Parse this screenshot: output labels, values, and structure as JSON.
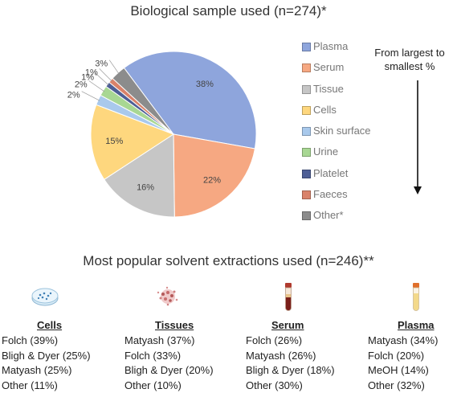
{
  "pie_title": "Biological sample used (n=274)*",
  "extraction_title": "Most popular solvent extractions used (n=246)**",
  "order_note": "From largest to smallest %",
  "chart_data": {
    "type": "pie",
    "title": "Biological sample used (n=274)*",
    "legend_position": "right",
    "slices": [
      {
        "label": "Plasma",
        "value": 38,
        "value_label": "38%",
        "color": "#8ea5dc"
      },
      {
        "label": "Serum",
        "value": 22,
        "value_label": "22%",
        "color": "#f6a882"
      },
      {
        "label": "Tissue",
        "value": 16,
        "value_label": "16%",
        "color": "#c6c6c6"
      },
      {
        "label": "Cells",
        "value": 15,
        "value_label": "15%",
        "color": "#fed77e"
      },
      {
        "label": "Skin surface",
        "value": 2,
        "value_label": "2%",
        "color": "#a9c9ec"
      },
      {
        "label": "Urine",
        "value": 2,
        "value_label": "2%",
        "color": "#a8d793"
      },
      {
        "label": "Platelet",
        "value": 1,
        "value_label": "1%",
        "color": "#4e5f96"
      },
      {
        "label": "Faeces",
        "value": 1,
        "value_label": "1%",
        "color": "#d9826a"
      },
      {
        "label": "Other*",
        "value": 3,
        "value_label": "3%",
        "color": "#8c8c8c"
      }
    ]
  },
  "extractions": [
    {
      "sample": "Cells",
      "icon": "petri-dish-icon",
      "items": [
        "Folch (39%)",
        "Bligh & Dyer (25%)",
        "Matyash (25%)",
        "Other (11%)"
      ]
    },
    {
      "sample": "Tissues",
      "icon": "tissue-icon",
      "items": [
        "Matyash (37%)",
        "Folch (33%)",
        "Bligh & Dyer (20%)",
        "Other (10%)"
      ]
    },
    {
      "sample": "Serum",
      "icon": "serum-tube-icon",
      "items": [
        "Folch (26%)",
        "Matyash (26%)",
        "Bligh & Dyer (18%)",
        "Other (30%)"
      ]
    },
    {
      "sample": "Plasma",
      "icon": "plasma-tube-icon",
      "items": [
        "Matyash (34%)",
        "Folch (20%)",
        "MeOH (14%)",
        "Other (32%)"
      ]
    }
  ]
}
